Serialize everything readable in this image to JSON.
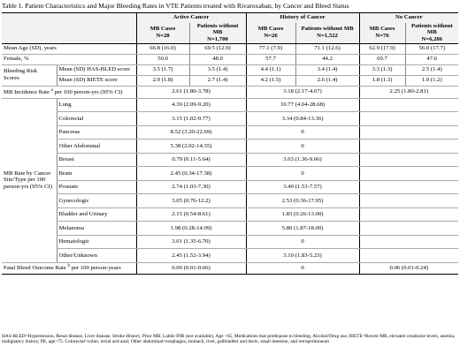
{
  "title": "Table 1.  Patient Characteristics and Major Bleeding Rates in VTE Patients treated with Rivaroxaban, by Cancer and Bleed Status",
  "groups": [
    {
      "name": "Active Cancer",
      "mb_label": "MB Cases",
      "mb_n": "N=28",
      "nomb_label": "Patients without MB",
      "nomb_n": "N=1,700"
    },
    {
      "name": "History of Cancer",
      "mb_label": "MB Cases",
      "mb_n": "N=26",
      "nomb_label": "Patients without MB",
      "nomb_n": "N=1,522"
    },
    {
      "name": "No Cancer",
      "mb_label": "MB Cases",
      "mb_n": "N=76",
      "nomb_label": "Patients without MB",
      "nomb_n": "N=6,286"
    }
  ],
  "rows": {
    "age": {
      "label": "Mean Age (SD), years",
      "v": [
        "66.8 (16.0)",
        "69.5 (12.9)",
        "77.1 (7.9)",
        "71.1 (12.6)",
        "62.9 (17.9)",
        "56.0 (17.7)"
      ]
    },
    "female": {
      "label": "Female, %",
      "v": [
        "50.0",
        "48.0",
        "57.7",
        "44.2",
        "69.7",
        "47.6"
      ]
    },
    "bleeding_group": "Bleeding Risk Scores",
    "hasbled": {
      "label": "Mean (SD) HAS-BLED score",
      "v": [
        "3.5 (1.7)",
        "3.5 (1.4)",
        "4.4 (1.1)",
        "3.4 (1.4)",
        "3.3 (1.3)",
        "2.5 (1.4)"
      ]
    },
    "riete": {
      "label": "Mean (SD) RIETE score",
      "v": [
        "2.9 (1.8)",
        "2.7 (1.4)",
        "4.2 (1.5)",
        "2.6 (1.4)",
        "1.8 (1.3)",
        "1.0 (1.2)"
      ]
    },
    "mb_incidence": {
      "label": "MB Incidence Rate",
      "sup": "a",
      "label_rest": " per 100 person-yrs (95% CI)",
      "v": [
        "2.61 (1.80-3.78)",
        "3.18  (2.17-4.67)",
        "2.25 (1.80-2.81)"
      ]
    }
  },
  "site_group_label": "MB Rate by Cancer Site/Type per 100 person-yrs (95% CI)",
  "sites": [
    {
      "name": "Lung",
      "active": "4.39 (2.09-9.20)",
      "history": "10.77 (4.04-28.68)"
    },
    {
      "name": "Colorectal",
      "active": "3.15 (1.02-9.77)",
      "history": "3.34 (0.84-13.36)"
    },
    {
      "name": "Pancreas",
      "active": "8.52 (3.20-22.69)",
      "history": "0"
    },
    {
      "name": "Other Abdominal",
      "active": "5.38 (2.02-14.35)",
      "history": "0"
    },
    {
      "name": "Breast",
      "active": "0.79 (0.11-5.64)",
      "history": "3.63 (1.36-9.66)"
    },
    {
      "name": "Brain",
      "active": "2.45 (0.34-17.38)",
      "history": "0"
    },
    {
      "name": "Prostate",
      "active": "2.74 (1.03-7.30)",
      "history": "3.40 (1.53-7.57)"
    },
    {
      "name": "Gynecologic",
      "active": "3.05 (0.76-12.2)",
      "history": "2.53 (0.36-17.95)"
    },
    {
      "name": "Bladder and Urinary",
      "active": "2.15 (0.54-8.61)",
      "history": "1.83 (0.26-13.00)"
    },
    {
      "name": "Melanoma",
      "active": "1.98 (0.28-14.09)",
      "history": "5.80 (1.87-18.00)"
    },
    {
      "name": "Hematologic",
      "active": "3.01 (1.35-6.70)",
      "history": "0"
    },
    {
      "name": "Other/Unknown",
      "active": "2.45 (1.52-3.94)",
      "history": "3.10 (1.83-5.23)"
    }
  ],
  "fatal": {
    "label": "Fatal Bleed Outcome Rate",
    "sup": "b",
    "label_rest": " per 100 person-years",
    "active": "0.09 (0.01-0.66)",
    "history": "0",
    "none": "0.06 (0.01-0.24)"
  },
  "footnote": "HAS-BLED=Hypertension, Renal disease, Liver disease, Stroke History, Prior MB, Labile INR (not available), Age >65, Medications that predispose to bleeding, Alcohol/Drug use; RIETE=Recent MB, elevated creatinine levels, anemia, malignancy history, PE, age>75. Colorectal=colon, rectal and anal; Other abdominal=esophagus, stomach, liver, gallbladder and ducts, small intestine, and retroperitoneum"
}
